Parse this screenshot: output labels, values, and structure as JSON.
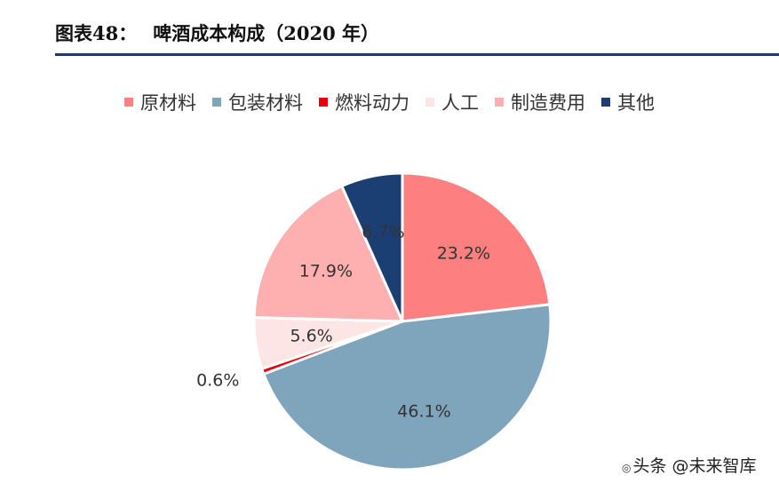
{
  "header": {
    "figure_label": "图表48：",
    "title": "啤酒成本构成（2020 年）"
  },
  "chart_data": {
    "type": "pie",
    "title": "",
    "legend_position": "top",
    "slices": [
      {
        "label": "原材料",
        "value": 23.2,
        "display": "23.2%",
        "color": "#fe7f80"
      },
      {
        "label": "包装材料",
        "value": 46.1,
        "display": "46.1%",
        "color": "#7fa5bd"
      },
      {
        "label": "燃料动力",
        "value": 0.6,
        "display": "0.6%",
        "color": "#e8000b"
      },
      {
        "label": "人工",
        "value": 5.6,
        "display": "5.6%",
        "color": "#fde5e6"
      },
      {
        "label": "制造费用",
        "value": 17.9,
        "display": "17.9%",
        "color": "#feb0b1"
      },
      {
        "label": "其他",
        "value": 6.7,
        "display": "6.7%",
        "color": "#1b3f72"
      }
    ]
  },
  "watermark": {
    "icon": "wechat-icon",
    "text": "头条 @未来智库"
  }
}
